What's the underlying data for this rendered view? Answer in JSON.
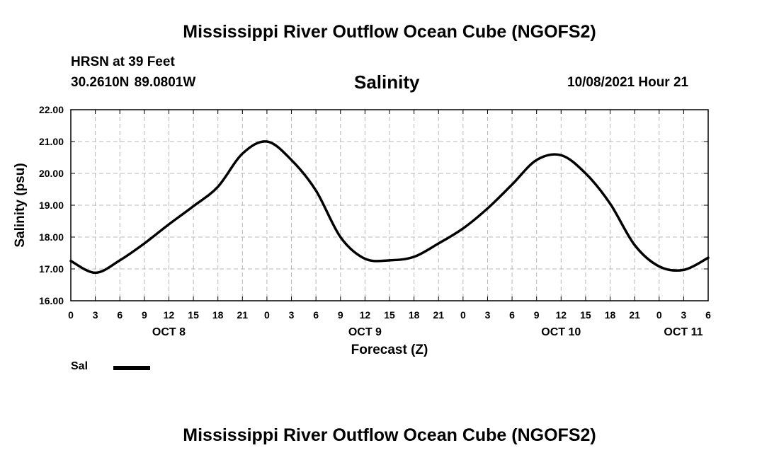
{
  "page": {
    "title": "Mississippi River Outflow Ocean Cube (NGOFS2)",
    "footer_title": "Mississippi River Outflow Ocean Cube (NGOFS2)"
  },
  "header": {
    "station": "HRSN at 39 Feet",
    "coords": "30.2610N  89.0801W",
    "datetime": "10/08/2021 Hour 21"
  },
  "legend": {
    "label": "Sal"
  },
  "chart_data": {
    "type": "line",
    "title": "Salinity",
    "xlabel": "Forecast (Z)",
    "ylabel": "Salinity (psu)",
    "xlim": [
      0,
      78
    ],
    "ylim": [
      16.0,
      22.0
    ],
    "yticks": [
      "16.00",
      "17.00",
      "18.00",
      "19.00",
      "20.00",
      "21.00",
      "22.00"
    ],
    "xticks": [
      "0",
      "3",
      "6",
      "9",
      "12",
      "15",
      "18",
      "21",
      "0",
      "3",
      "6",
      "9",
      "12",
      "15",
      "18",
      "21",
      "0",
      "3",
      "6",
      "9",
      "12",
      "15",
      "18",
      "21",
      "0",
      "3",
      "6"
    ],
    "day_labels": [
      "OCT 8",
      "OCT 9",
      "OCT 10",
      "OCT 11"
    ],
    "grid": true,
    "series": [
      {
        "name": "Sal",
        "x": [
          0,
          3,
          6,
          9,
          12,
          15,
          18,
          21,
          24,
          27,
          30,
          33,
          36,
          39,
          42,
          45,
          48,
          51,
          54,
          57,
          60,
          63,
          66,
          69,
          72,
          75,
          78
        ],
        "y": [
          17.25,
          16.88,
          17.27,
          17.8,
          18.4,
          18.97,
          19.58,
          20.62,
          21.0,
          20.42,
          19.46,
          18.0,
          17.32,
          17.27,
          17.38,
          17.8,
          18.27,
          18.9,
          19.65,
          20.42,
          20.57,
          20.0,
          19.05,
          17.75,
          17.08,
          16.97,
          17.35
        ]
      }
    ]
  }
}
